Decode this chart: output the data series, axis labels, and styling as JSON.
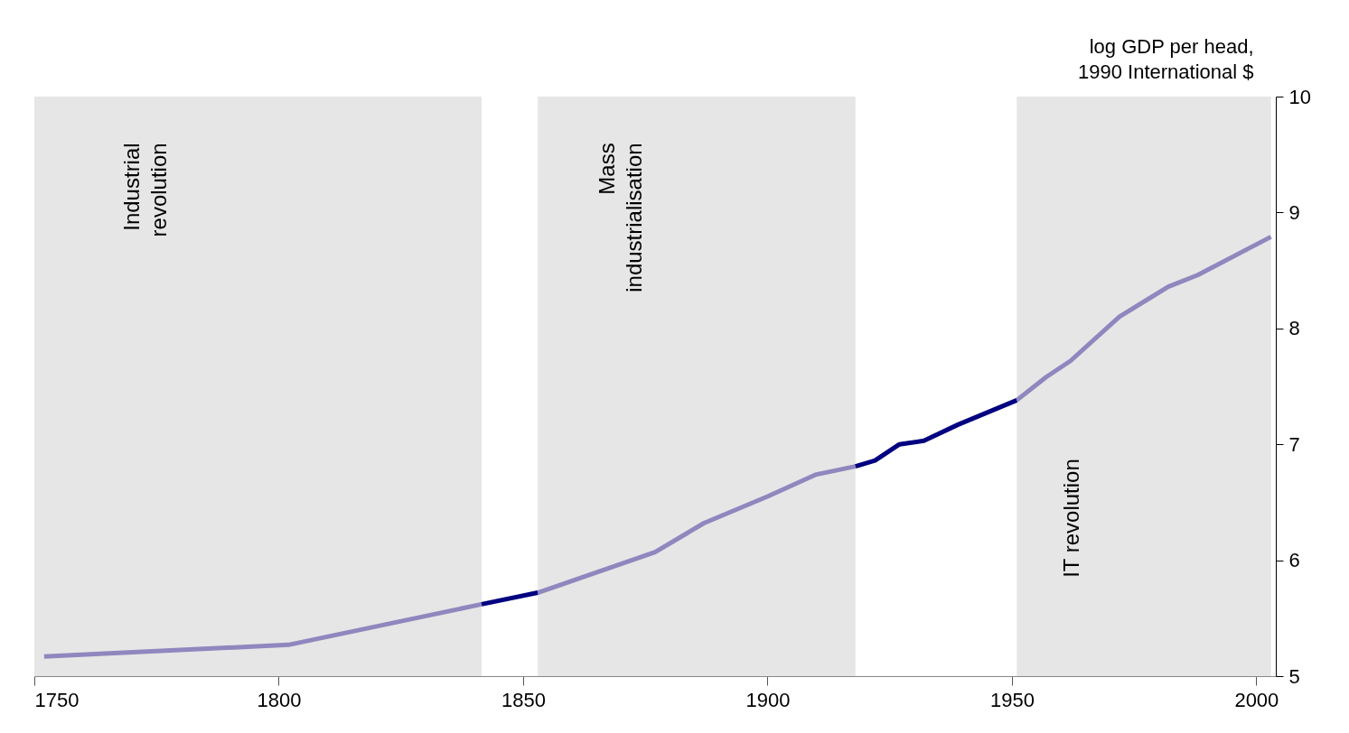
{
  "chart_data": {
    "type": "line",
    "ylabel": "log GDP per head,\n1990 International $",
    "xlim": [
      1750,
      2004
    ],
    "xticks": [
      1750,
      1800,
      1850,
      1900,
      1950,
      2000
    ],
    "ylim": [
      5,
      10
    ],
    "yticks": [
      5,
      6,
      7,
      8,
      9,
      10
    ],
    "series": [
      {
        "color": "#8f87be",
        "x": [
          1752,
          1802,
          1841.5,
          1847,
          1853,
          1877,
          1887,
          1900,
          1910,
          1918,
          1935,
          1951,
          1957,
          1962,
          1972,
          1982,
          1988,
          2003
        ],
        "values": [
          5.17,
          5.27,
          5.62,
          null,
          5.72,
          6.07,
          6.32,
          6.55,
          6.74,
          6.81,
          null,
          7.38,
          7.58,
          7.72,
          8.1,
          8.36,
          8.46,
          8.79
        ]
      },
      {
        "color": "#000080",
        "x": [
          1841.5,
          1853,
          1885,
          1918,
          1922,
          1927,
          1932,
          1939,
          1951
        ],
        "values": [
          5.62,
          5.72,
          null,
          6.81,
          6.86,
          7.0,
          7.03,
          7.17,
          7.38
        ]
      }
    ],
    "bands": [
      {
        "axis": "x",
        "from": 1750,
        "to": 1841.5,
        "label": "Industrial\nrevolution",
        "color": "#e6e6e6"
      },
      {
        "axis": "x",
        "from": 1853,
        "to": 1918,
        "label": "Mass\nindustrialisation",
        "color": "#e6e6e6"
      },
      {
        "axis": "x",
        "from": 1951,
        "to": 2003,
        "label": "IT revolution",
        "color": "#e6e6e6"
      }
    ]
  }
}
